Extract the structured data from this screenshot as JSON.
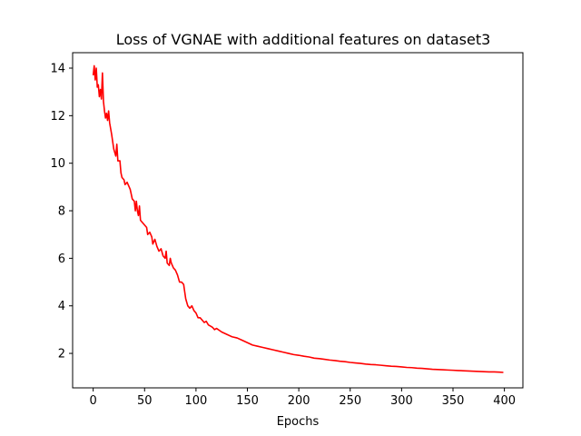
{
  "chart_data": {
    "type": "line",
    "title": "Loss of VGNAE with additional features on dataset3",
    "xlabel": "Epochs",
    "ylabel": "",
    "xlim": [
      -20,
      418
    ],
    "ylim": [
      0.55,
      14.65
    ],
    "x_ticks": [
      0,
      50,
      100,
      150,
      200,
      250,
      300,
      350,
      400
    ],
    "y_ticks": [
      2,
      4,
      6,
      8,
      10,
      12,
      14
    ],
    "grid": false,
    "series": [
      {
        "color": "#ff0000",
        "points": [
          [
            0,
            13.7
          ],
          [
            1,
            14.1
          ],
          [
            2,
            13.5
          ],
          [
            3,
            14.0
          ],
          [
            4,
            13.2
          ],
          [
            5,
            13.3
          ],
          [
            6,
            12.8
          ],
          [
            7,
            13.1
          ],
          [
            8,
            12.7
          ],
          [
            9,
            13.8
          ],
          [
            10,
            12.6
          ],
          [
            11,
            12.2
          ],
          [
            12,
            11.9
          ],
          [
            13,
            12.1
          ],
          [
            14,
            11.8
          ],
          [
            15,
            12.2
          ],
          [
            16,
            11.7
          ],
          [
            18,
            11.2
          ],
          [
            19,
            10.9
          ],
          [
            20,
            10.6
          ],
          [
            22,
            10.3
          ],
          [
            23,
            10.8
          ],
          [
            24,
            10.1
          ],
          [
            26,
            10.1
          ],
          [
            27,
            9.6
          ],
          [
            28,
            9.4
          ],
          [
            30,
            9.3
          ],
          [
            31,
            9.1
          ],
          [
            33,
            9.2
          ],
          [
            35,
            9.0
          ],
          [
            36,
            8.9
          ],
          [
            38,
            8.5
          ],
          [
            40,
            8.4
          ],
          [
            41,
            8.0
          ],
          [
            42,
            8.4
          ],
          [
            43,
            8.0
          ],
          [
            44,
            7.8
          ],
          [
            45,
            8.2
          ],
          [
            46,
            7.6
          ],
          [
            48,
            7.5
          ],
          [
            50,
            7.4
          ],
          [
            52,
            7.3
          ],
          [
            53,
            7.0
          ],
          [
            55,
            7.1
          ],
          [
            57,
            6.9
          ],
          [
            58,
            6.6
          ],
          [
            60,
            6.8
          ],
          [
            62,
            6.5
          ],
          [
            64,
            6.3
          ],
          [
            66,
            6.4
          ],
          [
            68,
            6.1
          ],
          [
            70,
            6.0
          ],
          [
            71,
            6.3
          ],
          [
            72,
            5.8
          ],
          [
            74,
            5.7
          ],
          [
            75,
            6.0
          ],
          [
            76,
            5.8
          ],
          [
            78,
            5.6
          ],
          [
            80,
            5.5
          ],
          [
            82,
            5.3
          ],
          [
            84,
            5.0
          ],
          [
            86,
            5.0
          ],
          [
            88,
            4.9
          ],
          [
            89,
            4.6
          ],
          [
            90,
            4.3
          ],
          [
            92,
            4.0
          ],
          [
            94,
            3.9
          ],
          [
            96,
            4.0
          ],
          [
            98,
            3.8
          ],
          [
            100,
            3.7
          ],
          [
            102,
            3.5
          ],
          [
            104,
            3.5
          ],
          [
            106,
            3.4
          ],
          [
            108,
            3.3
          ],
          [
            110,
            3.35
          ],
          [
            112,
            3.2
          ],
          [
            114,
            3.15
          ],
          [
            116,
            3.1
          ],
          [
            118,
            3.0
          ],
          [
            120,
            3.05
          ],
          [
            125,
            2.9
          ],
          [
            130,
            2.8
          ],
          [
            135,
            2.7
          ],
          [
            140,
            2.65
          ],
          [
            145,
            2.55
          ],
          [
            150,
            2.45
          ],
          [
            155,
            2.35
          ],
          [
            160,
            2.3
          ],
          [
            165,
            2.25
          ],
          [
            170,
            2.2
          ],
          [
            175,
            2.15
          ],
          [
            180,
            2.1
          ],
          [
            185,
            2.05
          ],
          [
            190,
            2.0
          ],
          [
            195,
            1.95
          ],
          [
            200,
            1.92
          ],
          [
            205,
            1.88
          ],
          [
            210,
            1.85
          ],
          [
            215,
            1.8
          ],
          [
            220,
            1.78
          ],
          [
            225,
            1.75
          ],
          [
            230,
            1.72
          ],
          [
            235,
            1.7
          ],
          [
            240,
            1.67
          ],
          [
            245,
            1.65
          ],
          [
            250,
            1.62
          ],
          [
            255,
            1.6
          ],
          [
            260,
            1.58
          ],
          [
            265,
            1.55
          ],
          [
            270,
            1.53
          ],
          [
            275,
            1.52
          ],
          [
            280,
            1.5
          ],
          [
            285,
            1.48
          ],
          [
            290,
            1.46
          ],
          [
            295,
            1.45
          ],
          [
            300,
            1.43
          ],
          [
            305,
            1.41
          ],
          [
            310,
            1.4
          ],
          [
            315,
            1.38
          ],
          [
            320,
            1.37
          ],
          [
            325,
            1.35
          ],
          [
            330,
            1.33
          ],
          [
            335,
            1.32
          ],
          [
            340,
            1.31
          ],
          [
            345,
            1.3
          ],
          [
            350,
            1.29
          ],
          [
            355,
            1.28
          ],
          [
            360,
            1.27
          ],
          [
            365,
            1.26
          ],
          [
            370,
            1.25
          ],
          [
            375,
            1.24
          ],
          [
            380,
            1.23
          ],
          [
            385,
            1.22
          ],
          [
            390,
            1.22
          ],
          [
            395,
            1.21
          ],
          [
            399,
            1.2
          ]
        ]
      }
    ]
  }
}
